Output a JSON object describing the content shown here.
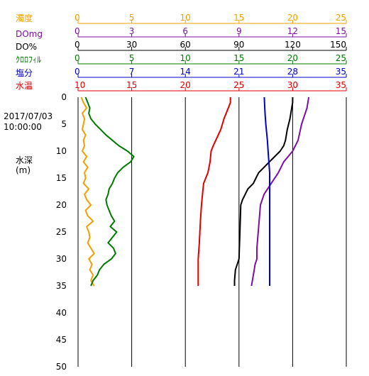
{
  "chart_data": {
    "type": "line",
    "timestamp_date": "2017/07/03",
    "timestamp_time": "10:00:00",
    "depth_label": "水深",
    "depth_unit": "(m)",
    "depth_ticks": [
      0,
      5,
      10,
      15,
      20,
      25,
      30,
      35,
      40,
      45,
      50
    ],
    "depth_range": [
      0,
      50
    ],
    "grid": true,
    "axes": [
      {
        "key": "turbidity",
        "name": "濁度",
        "color": "#f0a000",
        "ticks": [
          "0",
          "5",
          "10",
          "15",
          "20",
          "25"
        ],
        "range": [
          0,
          25
        ]
      },
      {
        "key": "domg",
        "name": "DOmg",
        "color": "#7b0fa0",
        "ticks": [
          "0",
          "3",
          "6",
          "9",
          "12",
          "15"
        ],
        "range": [
          0,
          15
        ]
      },
      {
        "key": "dopct",
        "name": "DO%",
        "color": "#000000",
        "ticks": [
          "0",
          "30",
          "60",
          "90",
          "120",
          "150"
        ],
        "range": [
          0,
          150
        ]
      },
      {
        "key": "chl",
        "name": "ｸﾛﾛﾌｨﾙ",
        "color": "#007a00",
        "ticks": [
          "0",
          "5",
          "10",
          "15",
          "20",
          "25"
        ],
        "range": [
          0,
          25
        ]
      },
      {
        "key": "salinity",
        "name": "塩分",
        "color": "#0000cc",
        "ticks": [
          "0",
          "7",
          "14",
          "21",
          "28",
          "35"
        ],
        "range": [
          0,
          35
        ]
      },
      {
        "key": "temp",
        "name": "水温",
        "color": "#e00000",
        "ticks": [
          "10",
          "15",
          "20",
          "25",
          "30",
          "35"
        ],
        "range": [
          10,
          35
        ]
      }
    ],
    "series": [
      {
        "axis": "temp",
        "color": "#e00000",
        "depth": [
          0,
          1,
          2,
          4,
          6,
          9,
          10,
          12,
          14,
          16,
          18,
          20,
          23,
          27,
          30,
          33,
          35
        ],
        "values": [
          24.2,
          24.2,
          24.0,
          23.6,
          23.3,
          22.6,
          22.4,
          22.3,
          22.1,
          21.7,
          21.6,
          21.5,
          21.4,
          21.3,
          21.2,
          21.2,
          21.2
        ]
      },
      {
        "axis": "domg",
        "color": "#7b0fa0",
        "depth": [
          0,
          2,
          5,
          8,
          10,
          12,
          14,
          16,
          18,
          20,
          24,
          28,
          30,
          31,
          33,
          35
        ],
        "values": [
          12.9,
          12.8,
          12.5,
          12.3,
          12.0,
          11.5,
          11.2,
          10.8,
          10.4,
          10.2,
          10.1,
          10.0,
          10.0,
          9.9,
          9.8,
          9.7
        ]
      },
      {
        "axis": "dopct",
        "color": "#000000",
        "depth": [
          0,
          1,
          2,
          4,
          6,
          8,
          9,
          10,
          12,
          13,
          14,
          15,
          16,
          17,
          18,
          19,
          20,
          25,
          30,
          32,
          34,
          35
        ],
        "values": [
          120,
          120,
          119.5,
          118.5,
          117,
          116,
          115,
          113,
          107,
          104,
          101,
          99.5,
          98,
          95,
          93.5,
          92,
          91,
          90.5,
          90,
          88,
          87.5,
          87.5
        ]
      },
      {
        "axis": "salinity",
        "color": "#0000cc",
        "depth": [
          0,
          3,
          5,
          8,
          10,
          12,
          14,
          16,
          20,
          25,
          30,
          35
        ],
        "values": [
          24.3,
          24.4,
          24.5,
          24.7,
          24.8,
          24.9,
          25.0,
          25.0,
          25.0,
          25.0,
          25.0,
          25.0
        ]
      },
      {
        "axis": "turbidity",
        "color": "#f0a000",
        "depth": [
          0,
          1,
          2,
          3,
          4,
          5,
          6,
          7,
          8,
          9,
          10,
          11,
          12,
          13,
          14,
          15,
          16,
          17,
          18,
          19,
          20,
          21,
          22,
          23,
          24,
          25,
          26,
          27,
          28,
          29,
          30,
          31,
          32,
          33,
          34,
          35
        ],
        "values": [
          0.3,
          0.5,
          0.8,
          0.4,
          0.6,
          0.5,
          0.4,
          0.7,
          0.5,
          0.6,
          0.4,
          0.8,
          0.5,
          0.9,
          0.6,
          0.7,
          0.5,
          1.0,
          0.6,
          0.8,
          1.2,
          0.7,
          0.9,
          1.4,
          0.8,
          1.0,
          1.1,
          0.9,
          1.2,
          1.5,
          1.0,
          1.3,
          1.1,
          1.4,
          1.2,
          1.5
        ]
      },
      {
        "axis": "chl",
        "color": "#007a00",
        "depth": [
          0,
          1,
          2,
          3,
          4,
          5,
          6,
          7,
          8,
          9,
          10,
          11,
          12,
          13,
          14,
          15,
          16,
          17,
          18,
          19,
          20,
          21,
          22,
          23,
          24,
          25,
          26,
          27,
          28,
          29,
          30,
          31,
          32,
          33,
          34,
          35
        ],
        "values": [
          0.7,
          0.9,
          1.1,
          1.0,
          1.2,
          1.6,
          2.1,
          2.6,
          3.2,
          3.8,
          4.6,
          5.2,
          4.9,
          4.2,
          3.7,
          3.4,
          3.2,
          2.9,
          2.8,
          2.6,
          2.7,
          2.9,
          3.1,
          3.4,
          3.0,
          3.6,
          3.2,
          2.8,
          3.3,
          3.5,
          3.1,
          2.4,
          2.0,
          1.8,
          1.4,
          1.2
        ]
      }
    ]
  }
}
